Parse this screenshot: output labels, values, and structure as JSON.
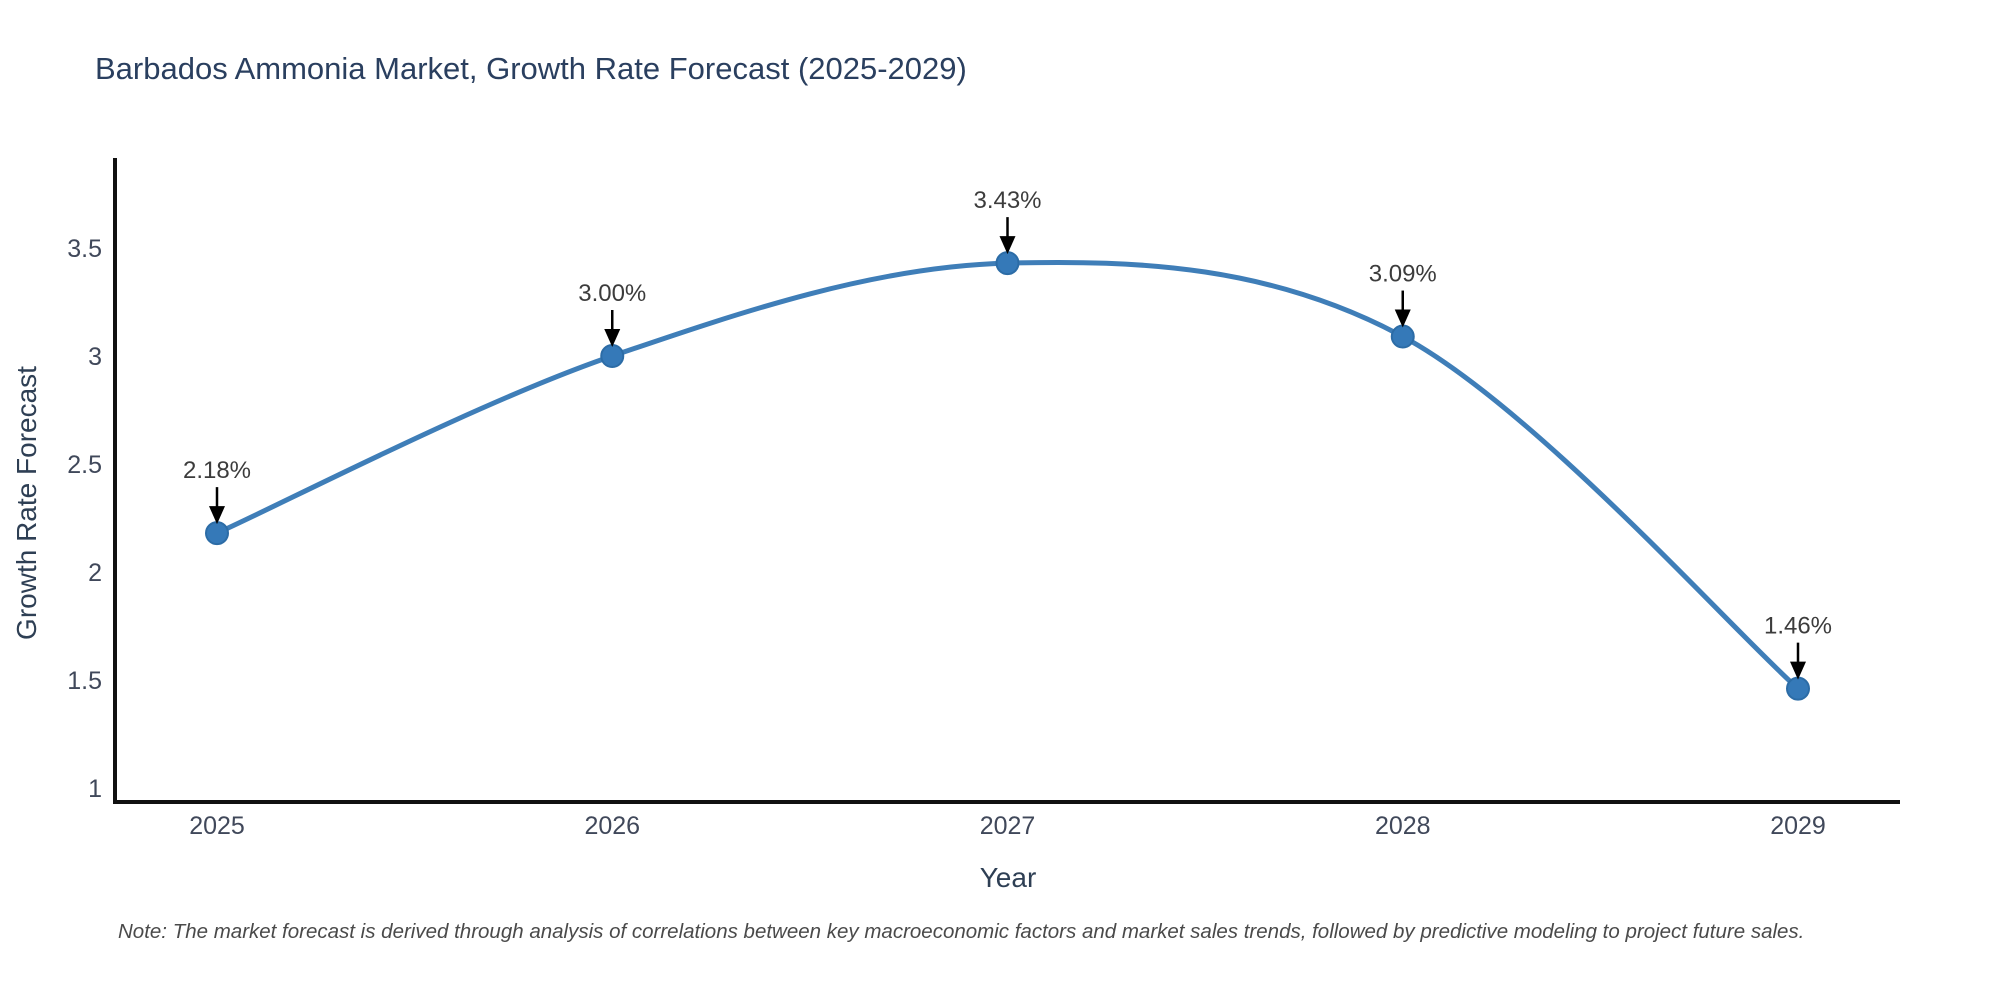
{
  "title": "Barbados Ammonia Market, Growth Rate Forecast (2025-2029)",
  "note": "Note: The market forecast is derived through analysis of correlations between key macroeconomic factors and market sales trends, followed by predictive modeling to project future sales.",
  "chart_data": {
    "type": "line",
    "title": "Barbados Ammonia Market, Growth Rate Forecast (2025-2029)",
    "xlabel": "Year",
    "ylabel": "Growth Rate Forecast",
    "x": [
      "2025",
      "2026",
      "2027",
      "2028",
      "2029"
    ],
    "series": [
      {
        "name": "Growth Rate Forecast",
        "values": [
          2.18,
          3.0,
          3.43,
          3.09,
          1.46
        ],
        "point_labels": [
          "2.18%",
          "3.00%",
          "3.43%",
          "3.09%",
          "1.46%"
        ]
      }
    ],
    "y_ticks": [
      "1",
      "1.5",
      "2",
      "2.5",
      "3",
      "3.5"
    ],
    "y_tick_values": [
      1,
      1.5,
      2,
      2.5,
      3,
      3.5
    ],
    "ylim": [
      0.93,
      3.91
    ],
    "grid": false,
    "legend_position": "none",
    "annotation_style": "black-down-arrow",
    "colors": {
      "line": "#3f7eb8",
      "marker_fill": "#3579b8",
      "marker_stroke": "#2c6ca6",
      "arrow": "#000000",
      "spine": "#111111",
      "title_text": "#2a3f5f",
      "tick_text": "#40485a",
      "note_text": "#4a4a4a"
    }
  }
}
